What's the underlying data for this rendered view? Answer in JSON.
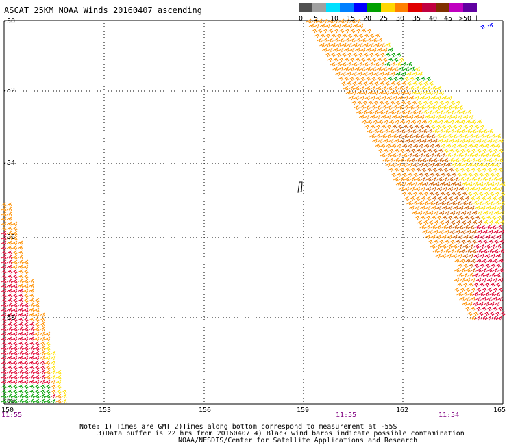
{
  "title": "ASCAT 25KM NOAA Winds 20160407 ascending",
  "scale": {
    "labels": [
      "0",
      "5",
      "10",
      "15",
      "20",
      "25",
      "30",
      "35",
      "40",
      "45",
      ">50 knots"
    ],
    "colors": [
      "#505050",
      "#a0a0a0",
      "#00e0ff",
      "#0080ff",
      "#0000ff",
      "#00a000",
      "#ffd700",
      "#ff8000",
      "#e00000",
      "#c00040",
      "#803000",
      "#c000c0",
      "#6000a0"
    ]
  },
  "axes": {
    "lat_labels": [
      "-50",
      "-52",
      "-54",
      "-56",
      "-58",
      "-60"
    ],
    "lon_labels": [
      "150",
      "153",
      "156",
      "159",
      "162",
      "165"
    ]
  },
  "time_labels": [
    "11:55",
    "11:55",
    "11:54"
  ],
  "notes": [
    "Note: 1) Times are GMT 2)Times along bottom correspond to measurement at -55S",
    "3)Data buffer is 22 hrs from 20160407 4) Black wind barbs indicate possible contamination",
    "NOAA/NESDIS/Center for Satellite Applications and Research"
  ],
  "colors": {
    "green": "#00a000",
    "yellow": "#ffe000",
    "orange": "#ff9000",
    "dark_orange": "#d06000",
    "red": "#e00030",
    "blue": "#0000ff",
    "time_purple": "#800080"
  }
}
